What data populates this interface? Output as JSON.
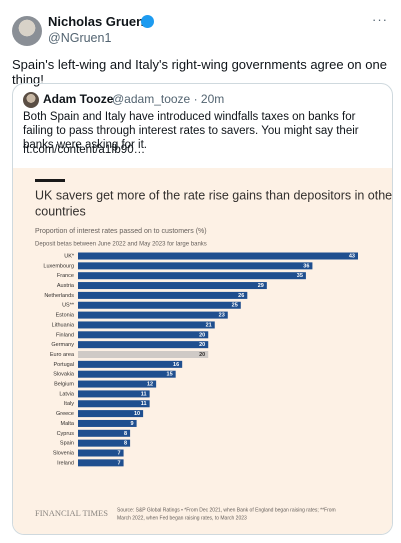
{
  "tweet": {
    "author": "Nicholas Gruen",
    "handle": "@NGruen1",
    "menu": "···",
    "text": "Spain's left-wing and Italy's right-wing governments agree on one thing!"
  },
  "quote": {
    "author": "Adam Tooze",
    "handle": "@adam_tooze",
    "separator": "·",
    "time": "20m",
    "text": "Both Spain and Italy have introduced windfalls taxes on banks for failing to pass through interest rates to savers. You might say their banks were asking for it.",
    "link": "ft.com/content/a1fb90…"
  },
  "chart": {
    "type": "bar",
    "title": [
      "UK savers get more of the rate rise gains than depositors in other",
      "countries"
    ],
    "subtitle": "Proportion of interest rates passed on to customers (%)",
    "note": "Deposit betas between June 2022 and May 2023 for large banks",
    "categories": [
      "UK*",
      "Luxembourg",
      "France",
      "Austria",
      "Netherlands",
      "US**",
      "Estonia",
      "Lithuania",
      "Finland",
      "Germany",
      "Euro area",
      "Portugal",
      "Slovakia",
      "Belgium",
      "Latvia",
      "Italy",
      "Greece",
      "Malta",
      "Cyprus",
      "Spain",
      "Slovenia",
      "Ireland"
    ],
    "values": [
      43,
      36,
      35,
      29,
      26,
      25,
      23,
      21,
      20,
      20,
      20,
      16,
      15,
      12,
      11,
      11,
      10,
      9,
      8,
      8,
      7,
      7
    ],
    "colors": [
      "#1f4f8f",
      "#1f4f8f",
      "#1f4f8f",
      "#1f4f8f",
      "#1f4f8f",
      "#1f4f8f",
      "#1f4f8f",
      "#1f4f8f",
      "#1f4f8f",
      "#1f4f8f",
      "#cfcac6",
      "#1f4f8f",
      "#1f4f8f",
      "#1f4f8f",
      "#1f4f8f",
      "#1f4f8f",
      "#1f4f8f",
      "#1f4f8f",
      "#1f4f8f",
      "#1f4f8f",
      "#1f4f8f",
      "#1f4f8f"
    ],
    "logo": "FINANCIAL TIMES",
    "source": [
      "Source: S&P Global Ratings • *From Dec 2021, when Bank of England began raising rates; **From",
      "March 2022, when Fed began raising rates, to March 2023"
    ]
  }
}
